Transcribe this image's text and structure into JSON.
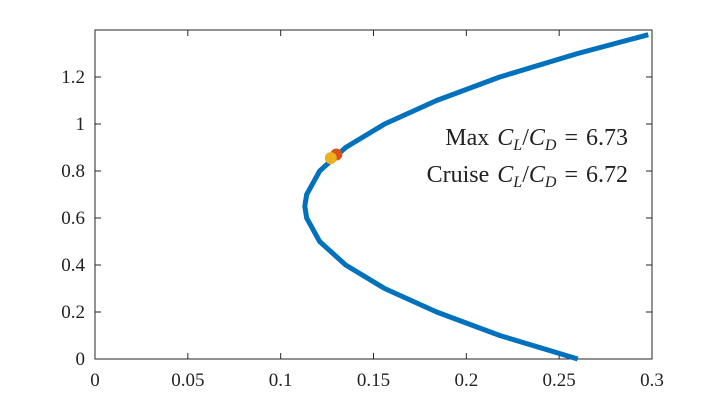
{
  "chart_data": {
    "type": "line",
    "x": [
      0.26,
      0.218,
      0.184,
      0.156,
      0.135,
      0.121,
      0.114,
      0.113,
      0.114,
      0.121,
      0.135,
      0.156,
      0.184,
      0.218,
      0.26,
      0.298
    ],
    "series": [
      {
        "color": "#0072bd",
        "values": [
          0,
          0.1,
          0.2,
          0.3,
          0.4,
          0.5,
          0.6,
          0.65,
          0.7,
          0.8,
          0.9,
          1.0,
          1.1,
          1.2,
          1.3,
          1.38
        ]
      }
    ],
    "markers": [
      {
        "color": "#d95319",
        "x": 0.13,
        "y": 0.87
      },
      {
        "color": "#edb120",
        "x": 0.127,
        "y": 0.855
      }
    ],
    "annotations": [
      {
        "label": "Max",
        "symbol": [
          "C",
          "L",
          "/",
          "C",
          "D",
          "="
        ],
        "value": 6.73
      },
      {
        "label": "Cruise",
        "symbol": [
          "C",
          "L",
          "/",
          "C",
          "D",
          "="
        ],
        "value": 6.72
      }
    ],
    "xlim": [
      0,
      0.3
    ],
    "xticks": [
      0,
      0.05,
      0.1,
      0.15,
      0.2,
      0.25,
      0.3
    ],
    "ylim": [
      0,
      1.4
    ],
    "yticks": [
      0,
      0.2,
      0.4,
      0.6,
      0.8,
      1,
      1.2
    ]
  }
}
